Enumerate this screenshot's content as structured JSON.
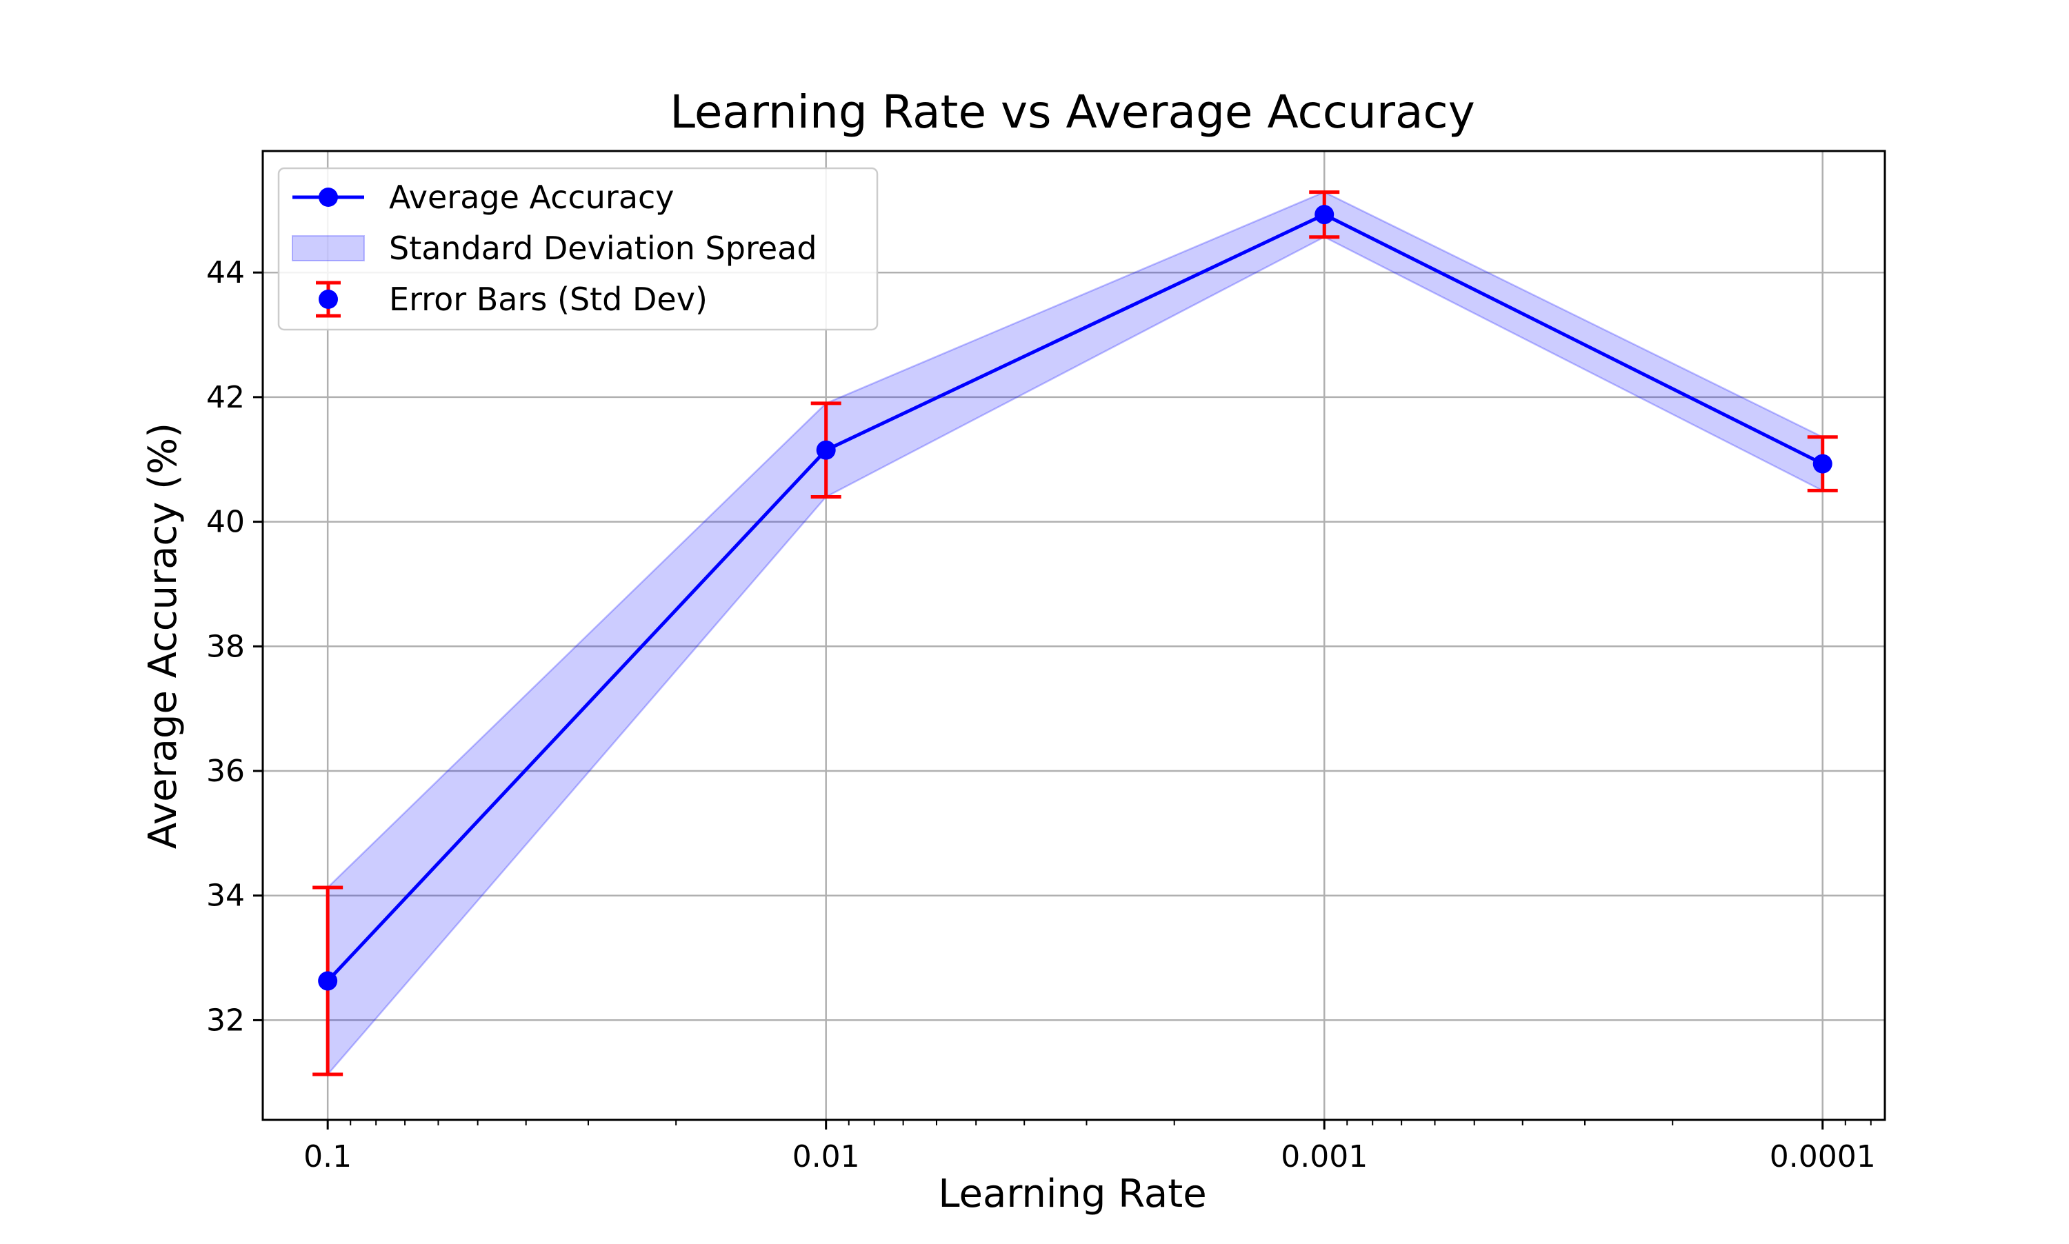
{
  "chart_data": {
    "type": "line",
    "title": "Learning Rate vs Average Accuracy",
    "xlabel": "Learning Rate",
    "ylabel": "Average Accuracy (%)",
    "x_scale": "log",
    "x_reversed": true,
    "x": [
      0.1,
      0.01,
      0.001,
      0.0001
    ],
    "x_tick_labels": [
      "0.1",
      "0.01",
      "0.001",
      "0.0001"
    ],
    "y_ticks": [
      32,
      34,
      36,
      38,
      40,
      42,
      44
    ],
    "ylim": [
      30.4,
      45.95
    ],
    "xlim": [
      0.135,
      7.5e-05
    ],
    "grid": true,
    "legend_position": "upper-left",
    "series": [
      {
        "name": "Average Accuracy",
        "values": [
          32.63,
          41.15,
          44.93,
          40.93
        ],
        "color": "#0000ff",
        "marker": "circle"
      },
      {
        "name": "Standard Deviation Spread",
        "lower": [
          31.13,
          40.4,
          44.57,
          40.5
        ],
        "upper": [
          34.13,
          41.9,
          45.29,
          41.36
        ],
        "color": "#0000ff",
        "opacity": 0.2
      },
      {
        "name": "Error Bars (Std Dev)",
        "values": [
          32.63,
          41.15,
          44.93,
          40.93
        ],
        "errors": [
          1.5,
          0.75,
          0.36,
          0.43
        ],
        "color": "#ff0000",
        "marker_color": "#0000ff"
      }
    ],
    "colors": {
      "line": "#0000ff",
      "band": "#0000ff",
      "error_bar": "#ff0000",
      "grid": "#b0b0b0",
      "axes": "#000000"
    }
  }
}
